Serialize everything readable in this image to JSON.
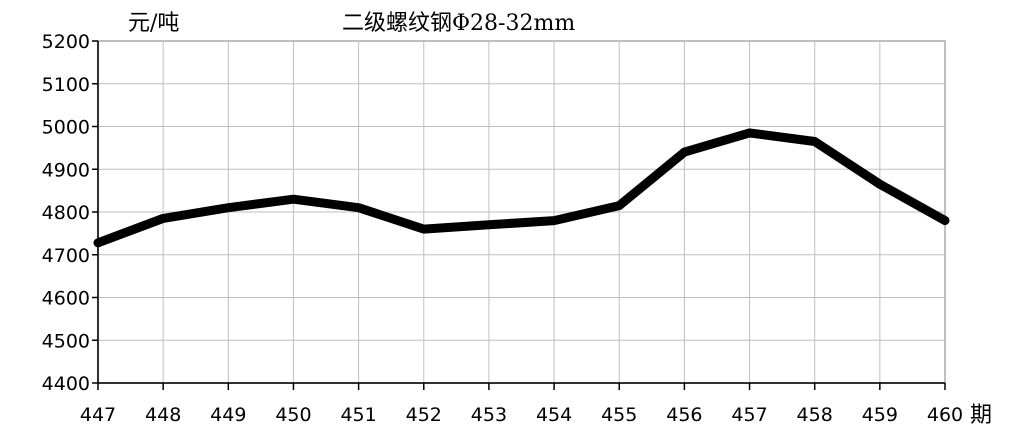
{
  "chart_data": {
    "type": "line",
    "title": "二级螺纹钢Φ28-32mm",
    "unit_label": "元/吨",
    "xlabel": "期",
    "ylabel": "元/吨",
    "categories": [
      "447",
      "448",
      "449",
      "450",
      "451",
      "452",
      "453",
      "454",
      "455",
      "456",
      "457",
      "458",
      "459",
      "460"
    ],
    "series": [
      {
        "name": "",
        "values": [
          4728,
          4785,
          4810,
          4830,
          4810,
          4760,
          4770,
          4780,
          4815,
          4940,
          4985,
          4965,
          4865,
          4780
        ],
        "color": "#000000"
      }
    ],
    "yticks": [
      4400,
      4500,
      4600,
      4700,
      4800,
      4900,
      5000,
      5100,
      5200
    ],
    "ylim": [
      4400,
      5200
    ],
    "grid": true,
    "legend": "none"
  }
}
